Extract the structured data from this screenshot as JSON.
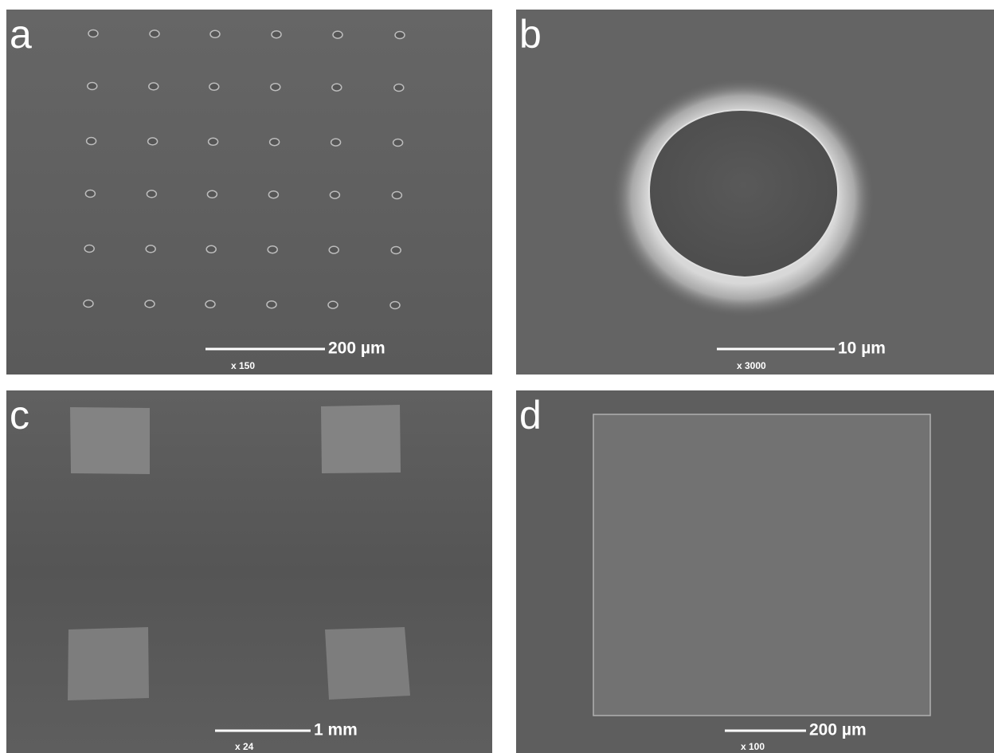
{
  "panels": [
    {
      "label": "a",
      "scale": "200 µm",
      "magnification": "x 150"
    },
    {
      "label": "b",
      "scale": "10 µm",
      "magnification": "x 3000"
    },
    {
      "label": "c",
      "scale": "1 mm",
      "magnification": "x 24"
    },
    {
      "label": "d",
      "scale": "200 µm",
      "magnification": "x 100"
    }
  ]
}
